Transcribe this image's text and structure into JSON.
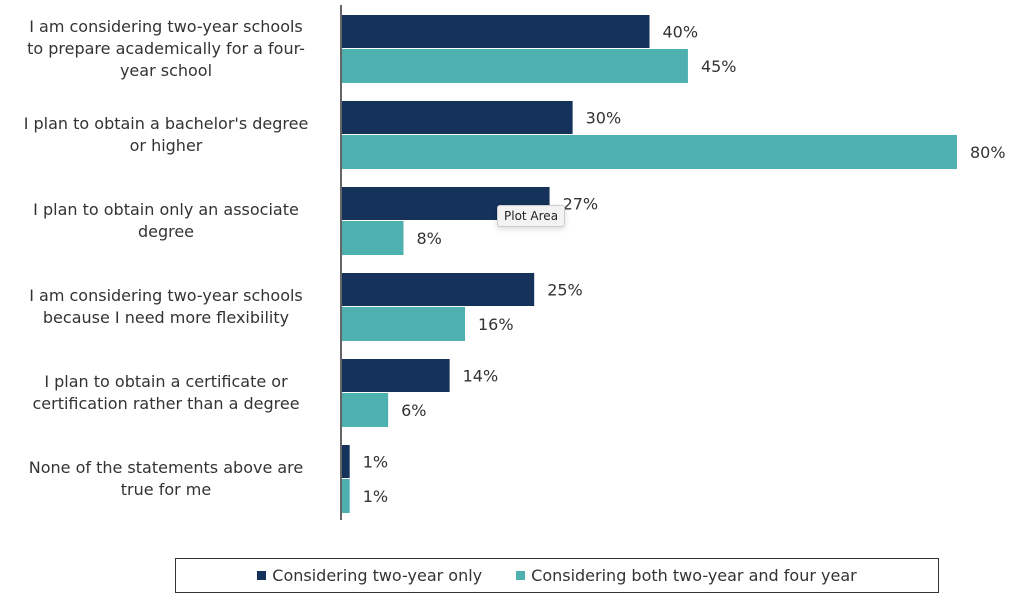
{
  "chart_data": {
    "type": "bar",
    "orientation": "horizontal",
    "categories": [
      "I am considering two-year schools to prepare academically for a four-year school",
      "I plan to obtain a bachelor's degree or higher",
      "I plan to obtain only an associate degree",
      "I am considering two-year schools because I need more flexibility",
      "I plan to obtain a certificate or certification rather than a degree",
      "None of the statements above are true for me"
    ],
    "category_lines": [
      [
        "I am considering two-year schools",
        "to prepare academically for a four-",
        "year school"
      ],
      [
        "I plan to obtain a bachelor's degree",
        "or higher"
      ],
      [
        "I plan to obtain only an associate",
        "degree"
      ],
      [
        "I am considering two-year schools",
        "because I need more flexibility"
      ],
      [
        "I plan to obtain a certificate or",
        "certification rather than a degree"
      ],
      [
        "None of the statements above are",
        "true for me"
      ]
    ],
    "series": [
      {
        "name": "Considering two-year only",
        "color": "#14325a",
        "values": [
          40,
          30,
          27,
          25,
          14,
          1
        ],
        "labels": [
          "40%",
          "30%",
          "27%",
          "25%",
          "14%",
          "1%"
        ]
      },
      {
        "name": "Considering both two-year and four year",
        "color": "#4fb0b0",
        "values": [
          45,
          80,
          8,
          16,
          6,
          1
        ],
        "labels": [
          "45%",
          "80%",
          "8%",
          "16%",
          "6%",
          "1%"
        ]
      }
    ],
    "value_format": "percent",
    "xlim": [
      0,
      80
    ],
    "grid": false,
    "legend_position": "bottom"
  },
  "tooltip": {
    "text": "Plot Area"
  }
}
